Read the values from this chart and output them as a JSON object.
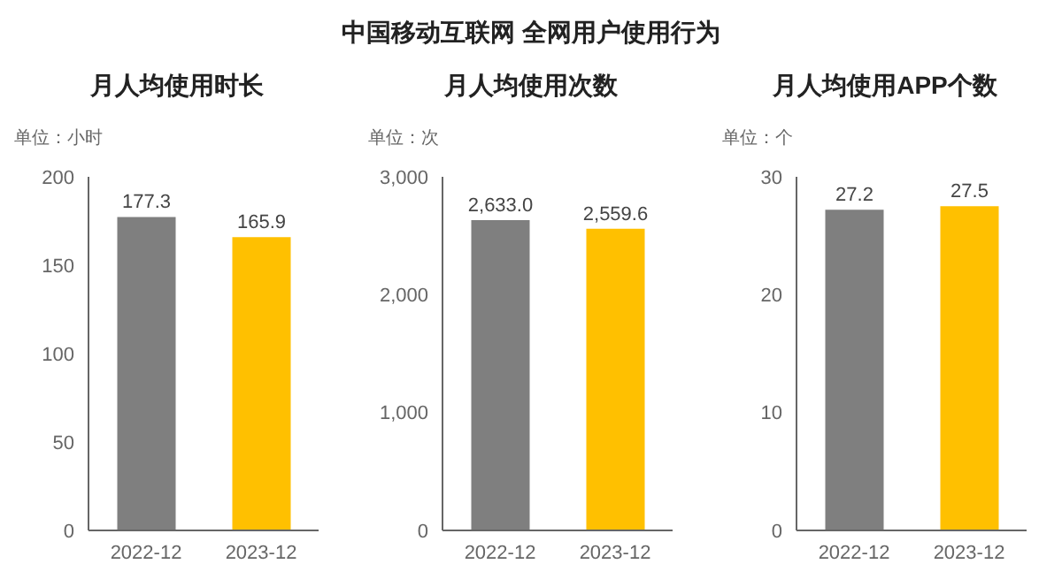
{
  "chart_data": [
    {
      "type": "bar",
      "title": "月人均使用时长",
      "ylabel": "单位：小时",
      "annotations": [
        "中国移动互联网 全网用户使用行为"
      ],
      "categories": [
        "2022-12",
        "2023-12"
      ],
      "values": [
        177.3,
        165.9
      ],
      "value_labels": [
        "177.3",
        "165.9"
      ],
      "colors": [
        "#7f7f7f",
        "#ffc000"
      ],
      "ylim": [
        0,
        200
      ],
      "yticks": [
        0,
        50,
        100,
        150,
        200
      ],
      "grid": false,
      "legend": false
    },
    {
      "type": "bar",
      "title": "月人均使用次数",
      "ylabel": "单位：次",
      "categories": [
        "2022-12",
        "2023-12"
      ],
      "values": [
        2633.0,
        2559.6
      ],
      "value_labels": [
        "2,633.0",
        "2,559.6"
      ],
      "colors": [
        "#7f7f7f",
        "#ffc000"
      ],
      "ylim": [
        0,
        3000
      ],
      "yticks": [
        0,
        {
          "value": 1000,
          "label": "1,000"
        },
        {
          "value": 2000,
          "label": "2,000"
        },
        {
          "value": 3000,
          "label": "3,000"
        }
      ],
      "grid": false,
      "legend": false
    },
    {
      "type": "bar",
      "title": "月人均使用APP个数",
      "ylabel": "单位：个",
      "categories": [
        "2022-12",
        "2023-12"
      ],
      "values": [
        27.2,
        27.5
      ],
      "value_labels": [
        "27.2",
        "27.5"
      ],
      "colors": [
        "#7f7f7f",
        "#ffc000"
      ],
      "ylim": [
        0,
        30
      ],
      "yticks": [
        0,
        10,
        20,
        30
      ],
      "grid": false,
      "legend": false
    }
  ]
}
